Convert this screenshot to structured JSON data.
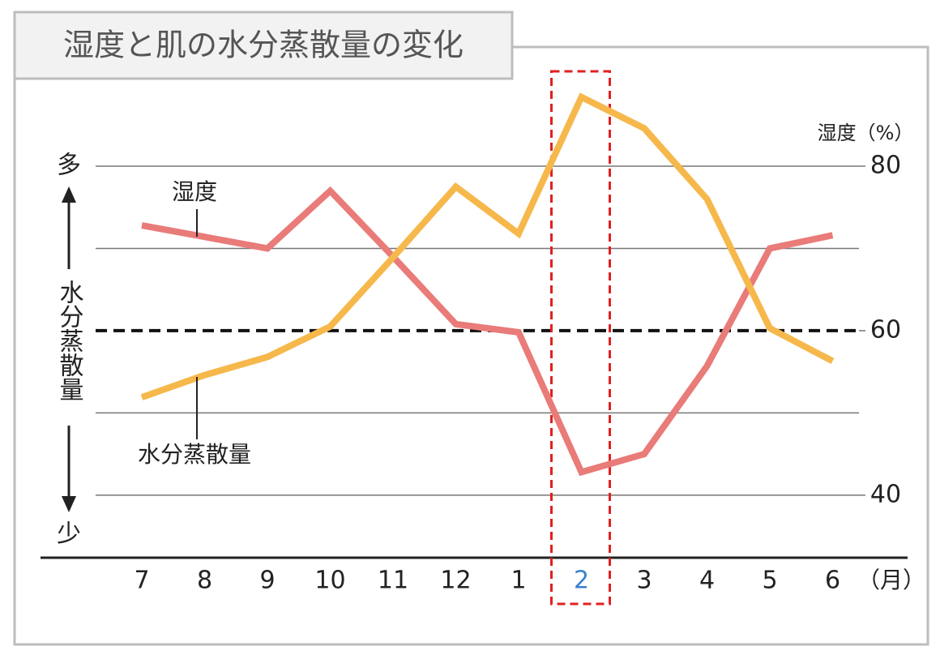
{
  "chart_data": {
    "type": "line",
    "title": "湿度と肌の水分蒸散量の変化",
    "categories": [
      "7",
      "8",
      "9",
      "10",
      "11",
      "12",
      "1",
      "2",
      "3",
      "4",
      "5",
      "6"
    ],
    "x_unit": "（月）",
    "series": [
      {
        "name": "湿度",
        "color": "#e97b79",
        "values": [
          72.8,
          71.4,
          70,
          77,
          69,
          60.8,
          59.8,
          42.8,
          45,
          55.7,
          70,
          71.6
        ]
      },
      {
        "name": "水分蒸散量",
        "color": "#f6b84b",
        "values": [
          51.9,
          54.6,
          56.8,
          60.5,
          68.9,
          77.5,
          71.8,
          88.4,
          84.6,
          76,
          60.3,
          56.3
        ]
      }
    ],
    "ylim": [
      32.4,
      90
    ],
    "yticks": [
      40,
      60,
      80
    ],
    "gridlines": [
      40,
      50,
      70,
      80
    ],
    "reference_line": 60,
    "y_label": "湿度（%）",
    "left_axis": {
      "top": "多",
      "bottom": "少",
      "label": "水分蒸散量"
    },
    "highlight_category": "2",
    "highlight_color": "#e02020"
  }
}
